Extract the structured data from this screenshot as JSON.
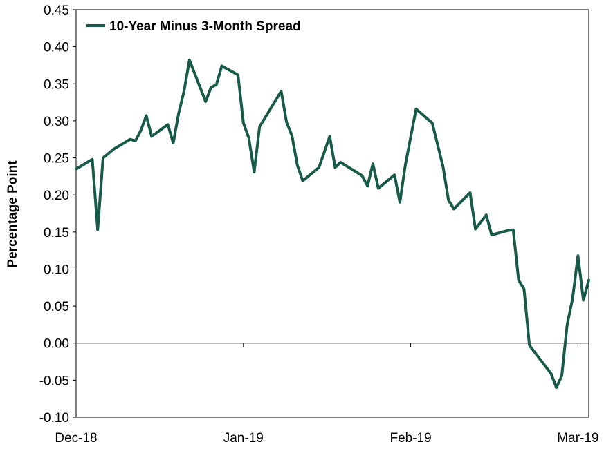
{
  "chart_data": {
    "type": "line",
    "xlabel": "",
    "ylabel": "Percentage Point",
    "ylim": [
      -0.1,
      0.45
    ],
    "y_ticks": [
      "-0.10",
      "-0.05",
      "0.00",
      "0.05",
      "0.10",
      "0.15",
      "0.20",
      "0.25",
      "0.30",
      "0.35",
      "0.40",
      "0.45"
    ],
    "xlim": [
      "2018-11-30",
      "2019-03-05"
    ],
    "x_ticks": [
      {
        "label": "Dec-18",
        "date": "2018-11-30"
      },
      {
        "label": "Jan-19",
        "date": "2018-12-31"
      },
      {
        "label": "Feb-19",
        "date": "2019-01-31"
      },
      {
        "label": "Mar-19",
        "date": "2019-03-03"
      }
    ],
    "grid": false,
    "legend": "top-left",
    "colors": {
      "line": "#175a48",
      "axis": "#000000"
    },
    "series": [
      {
        "name": "10-Year Minus 3-Month Spread",
        "points": [
          [
            "2018-11-30",
            0.235
          ],
          [
            "2018-12-03",
            0.248
          ],
          [
            "2018-12-04",
            0.153
          ],
          [
            "2018-12-05",
            0.25
          ],
          [
            "2018-12-07",
            0.262
          ],
          [
            "2018-12-10",
            0.275
          ],
          [
            "2018-12-11",
            0.273
          ],
          [
            "2018-12-12",
            0.287
          ],
          [
            "2018-12-13",
            0.307
          ],
          [
            "2018-12-14",
            0.279
          ],
          [
            "2018-12-17",
            0.295
          ],
          [
            "2018-12-18",
            0.27
          ],
          [
            "2018-12-19",
            0.31
          ],
          [
            "2018-12-20",
            0.34
          ],
          [
            "2018-12-21",
            0.382
          ],
          [
            "2018-12-24",
            0.326
          ],
          [
            "2018-12-25",
            0.345
          ],
          [
            "2018-12-26",
            0.349
          ],
          [
            "2018-12-27",
            0.374
          ],
          [
            "2018-12-30",
            0.362
          ],
          [
            "2018-12-31",
            0.297
          ],
          [
            "2019-01-01",
            0.277
          ],
          [
            "2019-01-02",
            0.231
          ],
          [
            "2019-01-03",
            0.292
          ],
          [
            "2019-01-07",
            0.34
          ],
          [
            "2019-01-08",
            0.298
          ],
          [
            "2019-01-09",
            0.28
          ],
          [
            "2019-01-10",
            0.24
          ],
          [
            "2019-01-11",
            0.219
          ],
          [
            "2019-01-14",
            0.237
          ],
          [
            "2019-01-16",
            0.279
          ],
          [
            "2019-01-17",
            0.237
          ],
          [
            "2019-01-18",
            0.244
          ],
          [
            "2019-01-22",
            0.226
          ],
          [
            "2019-01-23",
            0.212
          ],
          [
            "2019-01-24",
            0.242
          ],
          [
            "2019-01-25",
            0.209
          ],
          [
            "2019-01-28",
            0.227
          ],
          [
            "2019-01-29",
            0.19
          ],
          [
            "2019-01-30",
            0.24
          ],
          [
            "2019-02-01",
            0.316
          ],
          [
            "2019-02-04",
            0.297
          ],
          [
            "2019-02-06",
            0.238
          ],
          [
            "2019-02-07",
            0.193
          ],
          [
            "2019-02-08",
            0.181
          ],
          [
            "2019-02-11",
            0.203
          ],
          [
            "2019-02-12",
            0.154
          ],
          [
            "2019-02-14",
            0.173
          ],
          [
            "2019-02-15",
            0.146
          ],
          [
            "2019-02-18",
            0.152
          ],
          [
            "2019-02-19",
            0.153
          ],
          [
            "2019-02-20",
            0.085
          ],
          [
            "2019-02-21",
            0.073
          ],
          [
            "2019-02-22",
            -0.003
          ],
          [
            "2019-02-26",
            -0.041
          ],
          [
            "2019-02-27",
            -0.06
          ],
          [
            "2019-02-28",
            -0.044
          ],
          [
            "2019-03-01",
            0.025
          ],
          [
            "2019-03-02",
            0.06
          ],
          [
            "2019-03-03",
            0.118
          ],
          [
            "2019-03-04",
            0.058
          ],
          [
            "2019-03-05",
            0.085
          ]
        ]
      }
    ]
  }
}
